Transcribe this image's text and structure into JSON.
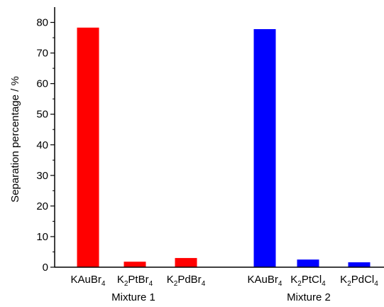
{
  "chart_data": {
    "type": "bar",
    "title": "",
    "xlabel": "",
    "ylabel": "Separation percentage / %",
    "ylim": [
      0,
      85
    ],
    "yticks": [
      0,
      10,
      20,
      30,
      40,
      50,
      60,
      70,
      80
    ],
    "grid": false,
    "legend": "none",
    "groups": [
      {
        "name": "Mixture 1",
        "color": "#ff0000",
        "bars": [
          {
            "label": {
              "base": "KAuBr",
              "sub": "4",
              "pre": "",
              "presub": ""
            },
            "value": 78.3
          },
          {
            "label": {
              "pre": "K",
              "presub": "2",
              "base": "PtBr",
              "sub": "4"
            },
            "value": 1.8
          },
          {
            "label": {
              "pre": "K",
              "presub": "2",
              "base": "PdBr",
              "sub": "4"
            },
            "value": 3.0
          }
        ]
      },
      {
        "name": "Mixture 2",
        "color": "#0000ff",
        "bars": [
          {
            "label": {
              "base": "KAuBr",
              "sub": "4",
              "pre": "",
              "presub": ""
            },
            "value": 77.8
          },
          {
            "label": {
              "pre": "K",
              "presub": "2",
              "base": "PtCl",
              "sub": "4"
            },
            "value": 2.5
          },
          {
            "label": {
              "pre": "K",
              "presub": "2",
              "base": "PdCl",
              "sub": "4"
            },
            "value": 1.6
          }
        ]
      }
    ]
  }
}
